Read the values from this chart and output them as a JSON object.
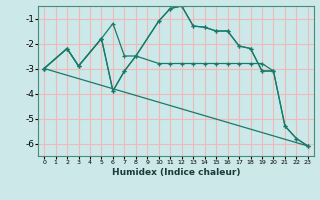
{
  "bg_color": "#cce8e8",
  "grid_color": "#f0b8b8",
  "line_color": "#1a7a6a",
  "marker": "+",
  "xlabel": "Humidex (Indice chaleur)",
  "xlim": [
    -0.5,
    23.5
  ],
  "ylim": [
    -6.5,
    -0.5
  ],
  "yticks": [
    -6,
    -5,
    -4,
    -3,
    -2,
    -1
  ],
  "xticks": [
    0,
    1,
    2,
    3,
    4,
    5,
    6,
    7,
    8,
    9,
    10,
    11,
    12,
    13,
    14,
    15,
    16,
    17,
    18,
    19,
    20,
    21,
    22,
    23
  ],
  "series": [
    {
      "x": [
        0,
        2,
        3,
        5,
        6,
        7,
        8,
        10,
        11,
        12,
        13,
        14,
        15,
        16,
        17,
        18,
        19,
        20
      ],
      "y": [
        -3.0,
        -2.2,
        -2.9,
        -1.8,
        -1.2,
        -2.5,
        -2.5,
        -1.1,
        -0.6,
        -0.5,
        -1.3,
        -1.35,
        -1.5,
        -1.5,
        -2.1,
        -2.2,
        -3.1,
        -3.1
      ]
    },
    {
      "x": [
        0,
        2,
        3,
        5,
        6,
        7,
        8,
        10,
        11,
        12,
        13,
        14,
        15,
        16,
        17,
        18,
        19,
        20,
        21,
        22,
        23
      ],
      "y": [
        -3.0,
        -2.2,
        -2.9,
        -1.8,
        -3.9,
        -3.1,
        -2.5,
        -1.1,
        -0.6,
        -0.5,
        -1.3,
        -1.35,
        -1.5,
        -1.5,
        -2.1,
        -2.2,
        -3.1,
        -3.1,
        -5.3,
        -5.8,
        -6.1
      ]
    },
    {
      "x": [
        0,
        2,
        3,
        5,
        6,
        7,
        8,
        10,
        11,
        12,
        13,
        14,
        15,
        16,
        17,
        18,
        19,
        20,
        21,
        22,
        23
      ],
      "y": [
        -3.0,
        -2.2,
        -2.9,
        -1.8,
        -3.9,
        -3.1,
        -2.5,
        -2.8,
        -2.8,
        -2.8,
        -2.8,
        -2.8,
        -2.8,
        -2.8,
        -2.8,
        -2.8,
        -2.8,
        -3.1,
        -5.3,
        -5.8,
        -6.1
      ]
    },
    {
      "x": [
        0,
        23
      ],
      "y": [
        -3.0,
        -6.1
      ]
    }
  ]
}
